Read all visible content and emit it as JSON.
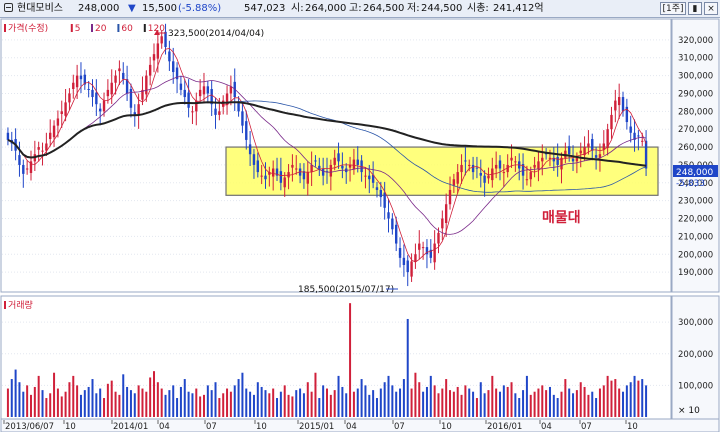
{
  "header": {
    "stock_name": "현대모비스",
    "price": "248,000",
    "change_arrow": "▼",
    "change": "15,500",
    "change_pct": "(-5.88%)",
    "volume": "547,023",
    "open_label": "시:",
    "open": "264,000",
    "high_label": "고:",
    "high": "264,500",
    "low_label": "저:",
    "low": "244,500",
    "market_cap_label": "시총:",
    "market_cap": "241,412억",
    "period_button": "[1주]",
    "nav_button": "▮",
    "close_button": "×"
  },
  "price_legend": [
    {
      "label": "가격(수정)",
      "color": "#d0203a"
    },
    {
      "label": "5",
      "color": "#d0203a"
    },
    {
      "label": "20",
      "color": "#7a2a8a"
    },
    {
      "label": "60",
      "color": "#2a55a8"
    },
    {
      "label": "120",
      "color": "#222222"
    }
  ],
  "volume_legend": [
    {
      "label": "거래량",
      "color": "#d0203a"
    }
  ],
  "annotations": {
    "high_note": "323,500(2014/04/04)",
    "low_note": "185,500(2015/07/17)",
    "zone_label": "매물대",
    "current_price_tag": "248,000",
    "current_change_tag": "-5,833",
    "volume_unit": "× 10"
  },
  "colors": {
    "up": "#d0203a",
    "down": "#1f46c8",
    "zone_fill": "#ffff66",
    "zone_stroke": "#707070",
    "ma120": "#222222"
  },
  "chart_data": {
    "type": "candlestick",
    "price_axis": {
      "min": 180000,
      "max": 330000,
      "ticks": [
        "320,000",
        "310,000",
        "300,000",
        "290,000",
        "280,000",
        "270,000",
        "260,000",
        "250,000",
        "240,000",
        "230,000",
        "220,000",
        "210,000",
        "200,000",
        "190,000"
      ]
    },
    "volume_axis": {
      "min": 0,
      "max": 370000,
      "ticks": [
        "300,000",
        "200,000",
        "100,000"
      ]
    },
    "x_labels": [
      "2013/06/07",
      "10",
      "2014/01",
      "04",
      "07",
      "10",
      "2015/01",
      "04",
      "07",
      "10",
      "2016/01",
      "04",
      "07",
      "10"
    ],
    "series": {
      "close": [
        264000,
        262000,
        258000,
        250000,
        245000,
        248000,
        252000,
        256000,
        260000,
        258000,
        262000,
        268000,
        272000,
        276000,
        280000,
        285000,
        290000,
        296000,
        300000,
        298000,
        295000,
        292000,
        288000,
        284000,
        280000,
        286000,
        292000,
        296000,
        300000,
        304000,
        298000,
        290000,
        282000,
        278000,
        284000,
        292000,
        300000,
        306000,
        312000,
        318000,
        322000,
        316000,
        308000,
        302000,
        298000,
        292000,
        288000,
        282000,
        280000,
        286000,
        292000,
        294000,
        290000,
        284000,
        278000,
        280000,
        286000,
        290000,
        294000,
        288000,
        280000,
        272000,
        264000,
        256000,
        250000,
        246000,
        244000,
        242000,
        246000,
        248000,
        244000,
        240000,
        243000,
        246000,
        250000,
        248000,
        244000,
        242000,
        246000,
        250000,
        252000,
        248000,
        244000,
        246000,
        250000,
        254000,
        252000,
        248000,
        246000,
        250000,
        253000,
        250000,
        246000,
        244000,
        242000,
        240000,
        236000,
        232000,
        226000,
        220000,
        214000,
        206000,
        198000,
        194000,
        190000,
        196000,
        200000,
        206000,
        204000,
        200000,
        198000,
        206000,
        212000,
        220000,
        228000,
        236000,
        242000,
        246000,
        250000,
        252000,
        250000,
        246000,
        248000,
        244000,
        240000,
        244000,
        248000,
        250000,
        248000,
        246000,
        250000,
        254000,
        252000,
        248000,
        244000,
        242000,
        246000,
        250000,
        252000,
        254000,
        256000,
        254000,
        252000,
        250000,
        254000,
        258000,
        256000,
        252000,
        254000,
        258000,
        260000,
        262000,
        258000,
        254000,
        256000,
        262000,
        270000,
        278000,
        286000,
        288000,
        280000,
        274000,
        268000,
        264000,
        266000,
        263500,
        248000
      ],
      "volume": [
        90000,
        120000,
        150000,
        110000,
        80000,
        100000,
        70000,
        95000,
        130000,
        85000,
        60000,
        75000,
        140000,
        90000,
        65000,
        80000,
        110000,
        130000,
        100000,
        70000,
        85000,
        95000,
        120000,
        75000,
        90000,
        60000,
        105000,
        115000,
        80000,
        70000,
        135000,
        95000,
        85000,
        75000,
        100000,
        90000,
        80000,
        125000,
        145000,
        110000,
        90000,
        70000,
        85000,
        100000,
        60000,
        95000,
        120000,
        80000,
        75000,
        90000,
        65000,
        70000,
        100000,
        85000,
        110000,
        60000,
        75000,
        90000,
        80000,
        100000,
        120000,
        140000,
        90000,
        80000,
        70000,
        110000,
        95000,
        85000,
        75000,
        90000,
        60000,
        80000,
        100000,
        70000,
        65000,
        85000,
        90000,
        75000,
        110000,
        80000,
        140000,
        60000,
        100000,
        90000,
        70000,
        85000,
        130000,
        95000,
        75000,
        360000,
        80000,
        90000,
        120000,
        100000,
        70000,
        85000,
        60000,
        90000,
        110000,
        130000,
        100000,
        80000,
        90000,
        120000,
        310000,
        90000,
        140000,
        110000,
        80000,
        95000,
        130000,
        100000,
        75000,
        90000,
        120000,
        85000,
        80000,
        95000,
        70000,
        100000,
        90000,
        80000,
        60000,
        110000,
        75000,
        85000,
        130000,
        90000,
        80000,
        100000,
        95000,
        110000,
        75000,
        60000,
        85000,
        130000,
        70000,
        80000,
        90000,
        100000,
        85000,
        95000,
        70000,
        60000,
        80000,
        120000,
        90000,
        75000,
        85000,
        110000,
        95000,
        70000,
        80000,
        60000,
        90000,
        100000,
        130000,
        115000,
        120000,
        90000,
        80000,
        100000,
        110000,
        130000,
        115000,
        120000,
        100000
      ]
    },
    "moving_averages": [
      "5",
      "20",
      "60",
      "120"
    ],
    "supply_zone": {
      "low": 233000,
      "high": 260000,
      "label": "매물대"
    },
    "marked_high": {
      "value": 323500,
      "date": "2014/04/04"
    },
    "marked_low": {
      "value": 185500,
      "date": "2015/07/17"
    },
    "last_close": 248000
  }
}
